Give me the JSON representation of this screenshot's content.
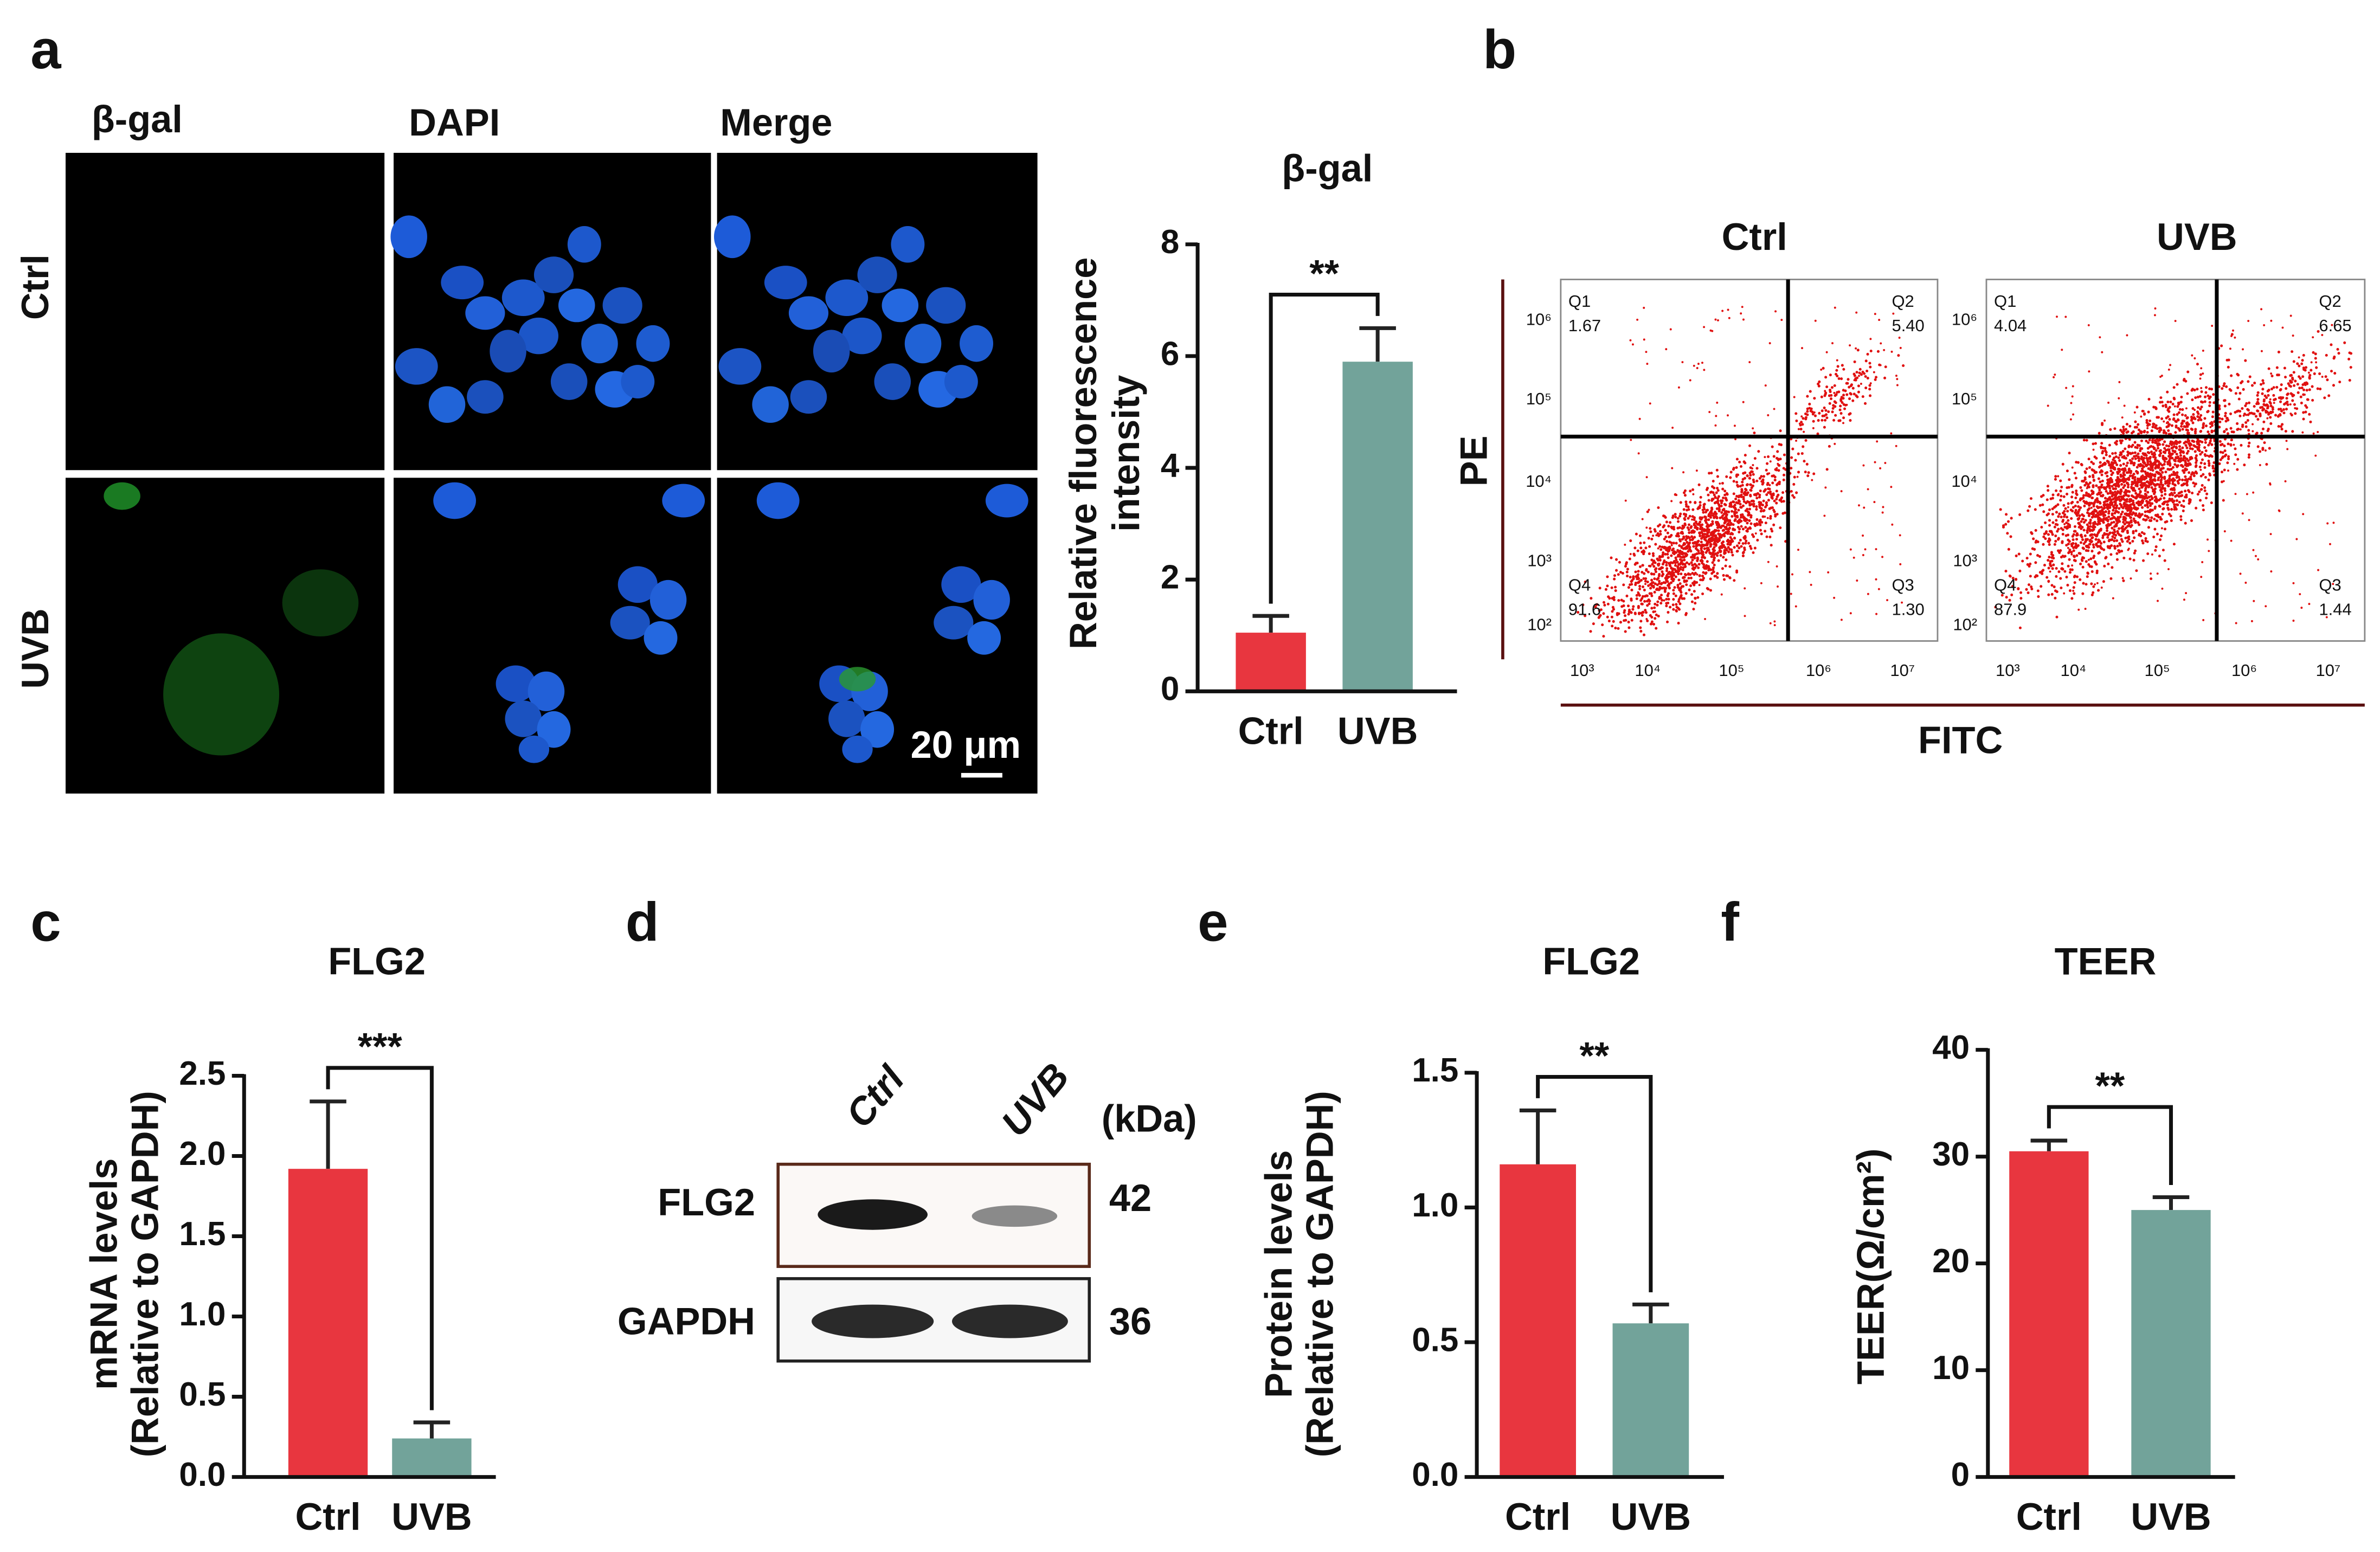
{
  "panel_letters": [
    "a",
    "b",
    "c",
    "d",
    "e",
    "f"
  ],
  "microscopy": {
    "columns": [
      "β-gal",
      "DAPI",
      "Merge"
    ],
    "rows": [
      "Ctrl",
      "UVB"
    ],
    "scale_bar": "20 μm"
  },
  "flow_cytometry": {
    "x_label": "FITC",
    "y_label": "PE",
    "xticks": [
      "10³",
      "10⁴",
      "10⁵",
      "10⁶",
      "10⁷"
    ],
    "yticks": [
      "10⁶",
      "10⁵",
      "10⁴",
      "10³",
      "10²"
    ],
    "plots": [
      {
        "title": "Ctrl",
        "quadrants": [
          {
            "name": "Q1",
            "value": "1.67"
          },
          {
            "name": "Q2",
            "value": "5.40"
          },
          {
            "name": "Q4",
            "value": "91.6"
          },
          {
            "name": "Q3",
            "value": "1.30"
          }
        ]
      },
      {
        "title": "UVB",
        "quadrants": [
          {
            "name": "Q1",
            "value": "4.04"
          },
          {
            "name": "Q2",
            "value": "6.65"
          },
          {
            "name": "Q4",
            "value": "87.9"
          },
          {
            "name": "Q3",
            "value": "1.44"
          }
        ]
      }
    ]
  },
  "western_blot": {
    "lanes": [
      "Ctrl",
      "UVB"
    ],
    "unit": "(kDa)",
    "bands": [
      {
        "name": "FLG2",
        "size": 42
      },
      {
        "name": "GAPDH",
        "size": 36
      }
    ]
  },
  "chart_data": [
    {
      "type": "bar",
      "title": "β-gal",
      "ylabel": [
        "Relative fluorescence",
        "intensity"
      ],
      "categories": [
        "Ctrl",
        "UVB"
      ],
      "values": [
        1.05,
        5.9
      ],
      "errors": [
        0.3,
        0.6
      ],
      "colors": [
        "#e8363f",
        "#72a39a"
      ],
      "annotation": "**",
      "ylim": [
        0,
        8
      ],
      "yticks": [
        0,
        2,
        4,
        6,
        8
      ]
    },
    {
      "type": "bar",
      "title": "FLG2",
      "ylabel": [
        "mRNA levels",
        "(Relative to GAPDH)"
      ],
      "categories": [
        "Ctrl",
        "UVB"
      ],
      "values": [
        1.92,
        0.24
      ],
      "errors": [
        0.42,
        0.1
      ],
      "colors": [
        "#e8363f",
        "#72a39a"
      ],
      "annotation": "***",
      "ylim": [
        0,
        2.5
      ],
      "yticks": [
        {
          "value": 0,
          "label": "0.0"
        },
        0.5,
        {
          "value": 1,
          "label": "1.0"
        },
        1.5,
        {
          "value": 2,
          "label": "2.0"
        },
        2.5
      ]
    },
    {
      "type": "bar",
      "title": "FLG2",
      "ylabel": [
        "Protein levels",
        "(Relative to GAPDH)"
      ],
      "categories": [
        "Ctrl",
        "UVB"
      ],
      "values": [
        1.16,
        0.57
      ],
      "errors": [
        0.2,
        0.07
      ],
      "colors": [
        "#e8363f",
        "#72a39a"
      ],
      "annotation": "**",
      "ylim": [
        0,
        1.5
      ],
      "yticks": [
        {
          "value": 0,
          "label": "0.0"
        },
        0.5,
        {
          "value": 1,
          "label": "1.0"
        },
        1.5
      ]
    },
    {
      "type": "bar",
      "title": "TEER",
      "ylabel": [
        "TEER(Ω/cm²)"
      ],
      "categories": [
        "Ctrl",
        "UVB"
      ],
      "values": [
        30.5,
        25
      ],
      "errors": [
        1,
        1.2
      ],
      "colors": [
        "#e8363f",
        "#72a39a"
      ],
      "annotation": "**",
      "ylim": [
        0,
        40
      ],
      "yticks": [
        0,
        10,
        20,
        30,
        40
      ]
    }
  ]
}
